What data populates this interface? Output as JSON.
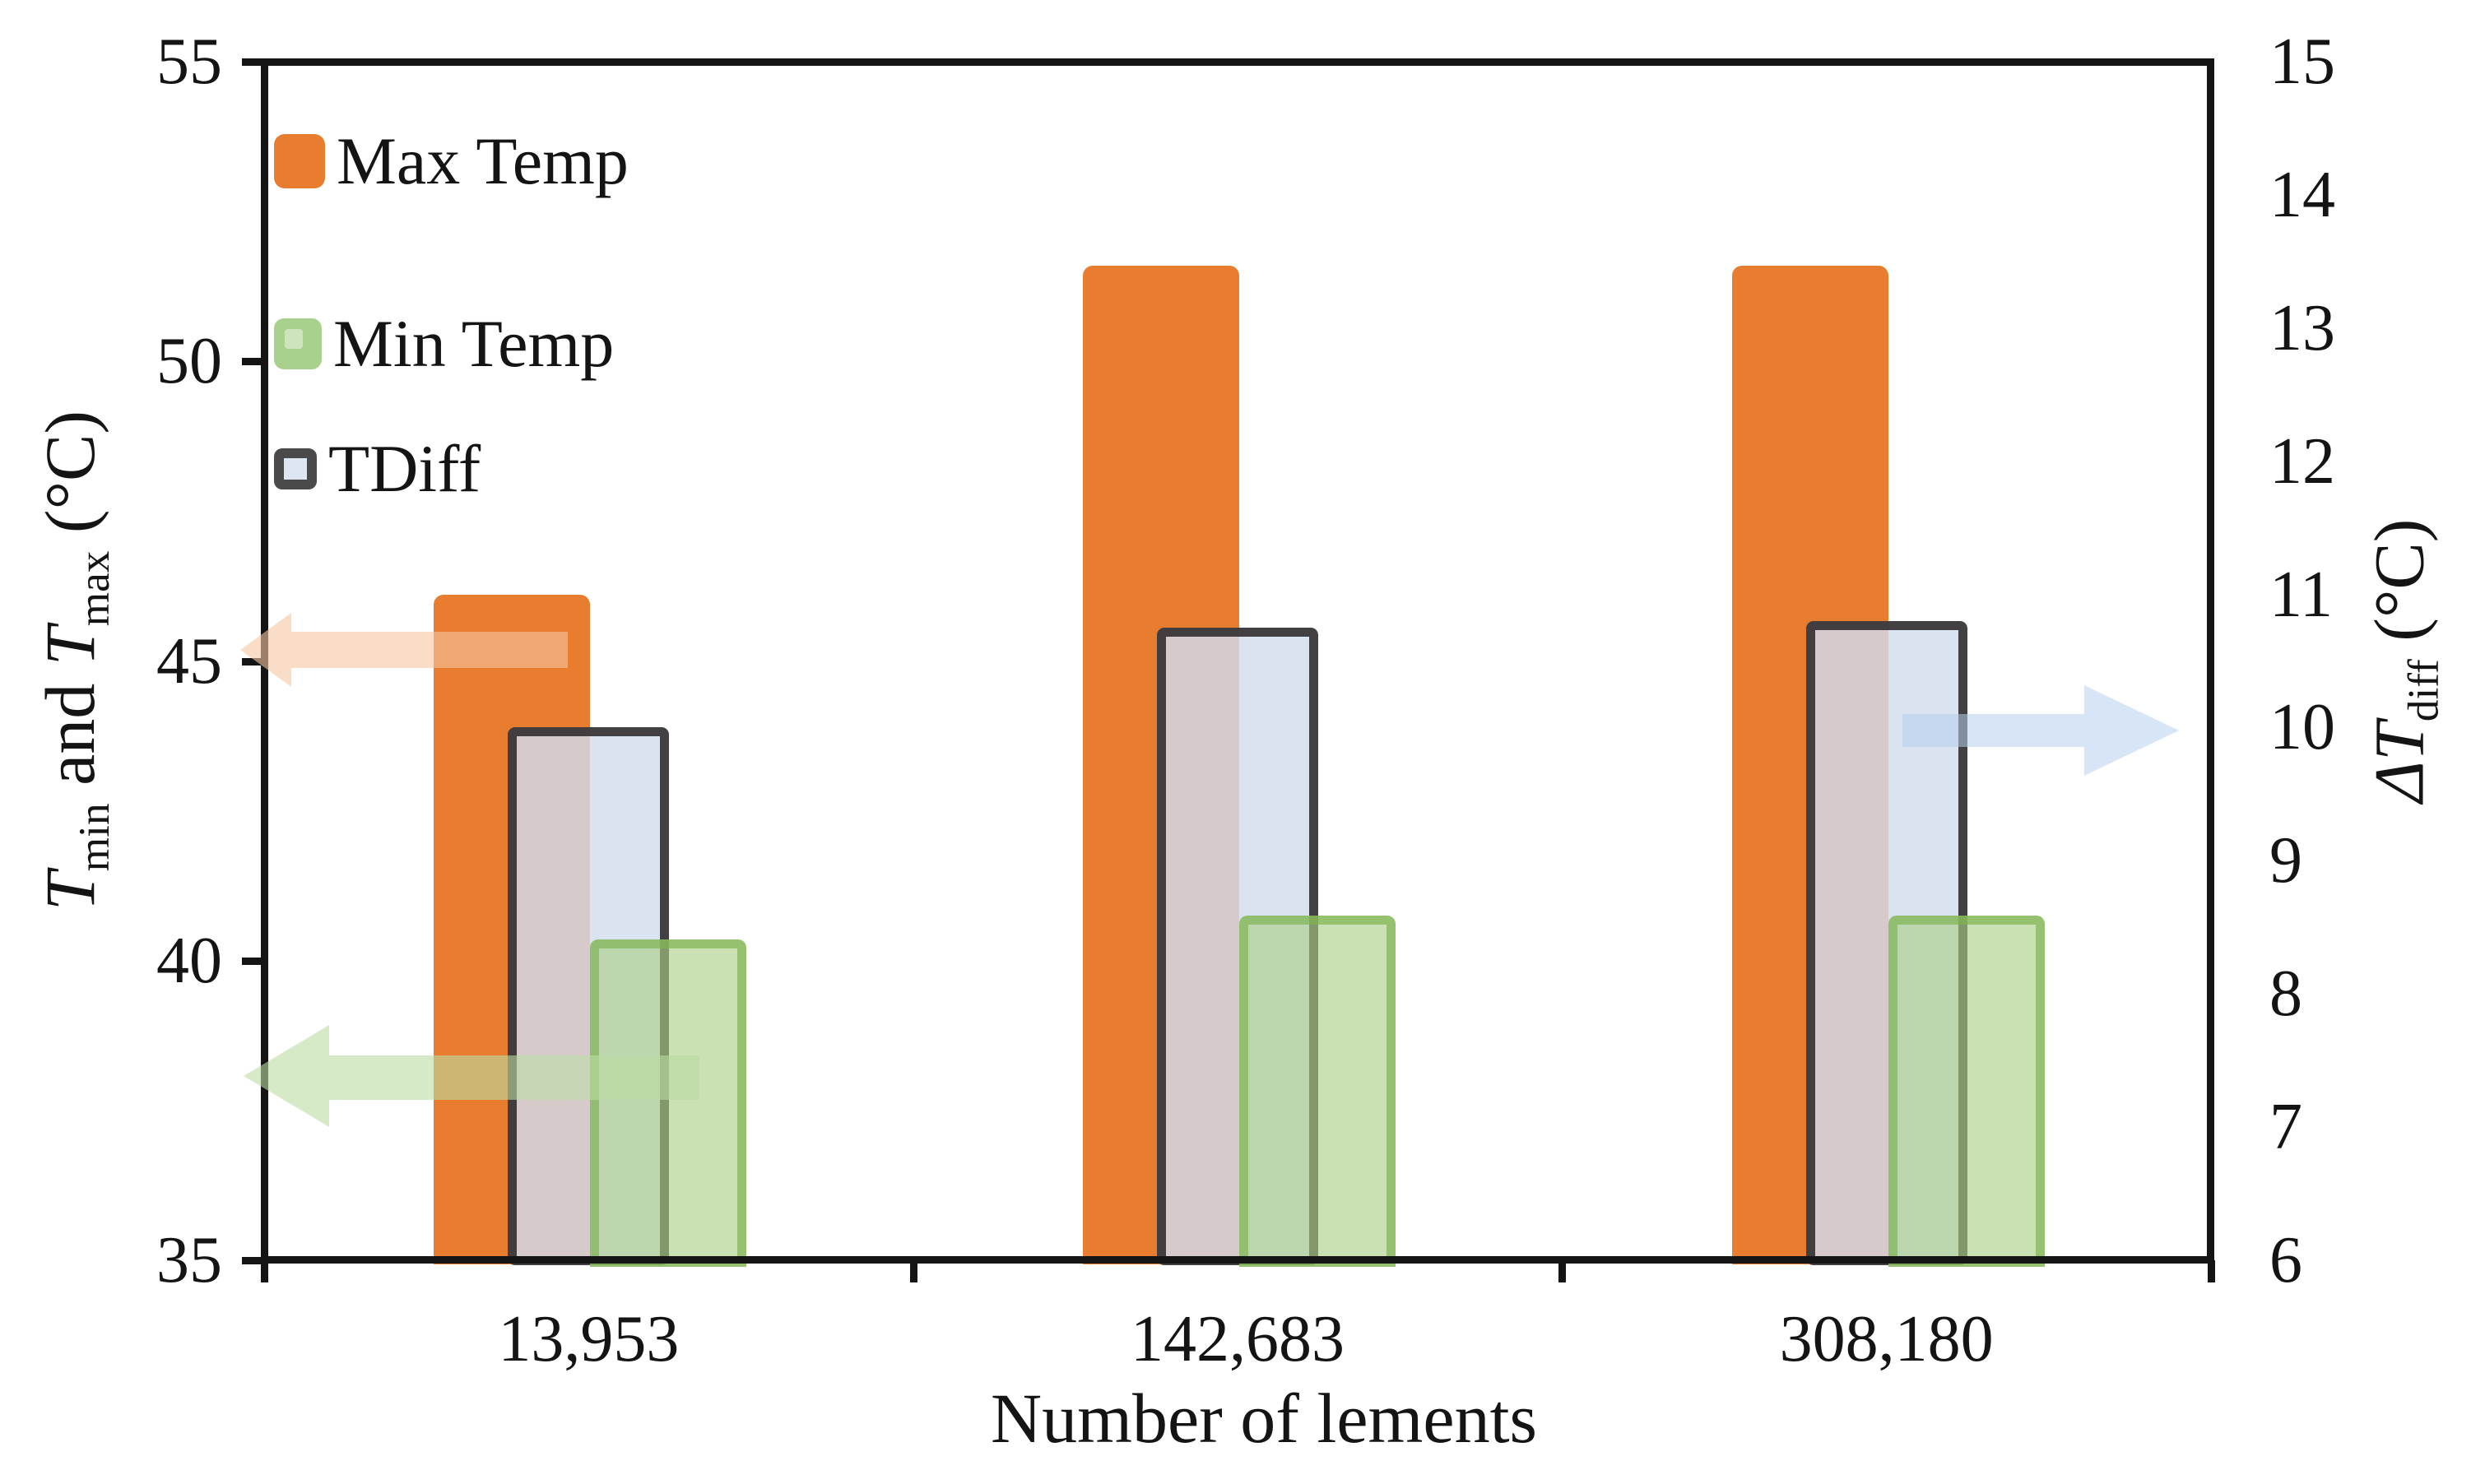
{
  "chart_data": {
    "type": "bar",
    "title": "",
    "categories": [
      "13,953",
      "142,683",
      "308,180"
    ],
    "series": [
      {
        "name": "Max Temp",
        "axis": "left",
        "values": [
          46.1,
          51.6,
          51.6
        ]
      },
      {
        "name": "Min Temp",
        "axis": "left",
        "values": [
          40.35,
          40.75,
          40.75
        ]
      },
      {
        "name": "TDiff",
        "axis": "right",
        "values": [
          10.0,
          10.75,
          10.8
        ]
      }
    ],
    "xlabel": "Number of lements",
    "left_axis": {
      "range": [
        35,
        55
      ],
      "ticks": [
        "55",
        "50",
        "45",
        "40",
        "35"
      ],
      "tick_values": [
        55,
        50,
        45,
        40,
        35
      ],
      "title_parts": {
        "t1": "T",
        "sub1": "min",
        "mid": " and ",
        "t2": "T",
        "sub2": "max",
        "unit": " (°C)"
      }
    },
    "right_axis": {
      "range": [
        6,
        15
      ],
      "ticks": [
        "15",
        "14",
        "13",
        "12",
        "11",
        "10",
        "9",
        "8",
        "7",
        "6"
      ],
      "tick_values": [
        15,
        14,
        13,
        12,
        11,
        10,
        9,
        8,
        7,
        6
      ],
      "title_parts": {
        "t": "ΔT",
        "sub": "diff",
        "unit": " (°C)"
      }
    },
    "legend": [
      {
        "label": "Max Temp",
        "swatch": "max"
      },
      {
        "label": "Min Temp",
        "swatch": "min"
      },
      {
        "label": "TDiff",
        "swatch": "tdiff"
      }
    ],
    "legend_position": "top-left-inside",
    "grid": false,
    "colors": {
      "max_fill": "#E87C2F",
      "min_fill": "rgba(170,207,133,0.62)",
      "min_border": "rgba(128,181,84,0.70)",
      "tdiff_fill": "rgba(210,221,237,0.82)",
      "tdiff_border": "rgba(45,42,42,0.88)",
      "axis_line": "#141414",
      "arrow_max": "rgba(246,198,160,0.60)",
      "arrow_min": "rgba(186,220,164,0.60)",
      "arrow_tdiff": "rgba(182,208,238,0.55)"
    }
  }
}
